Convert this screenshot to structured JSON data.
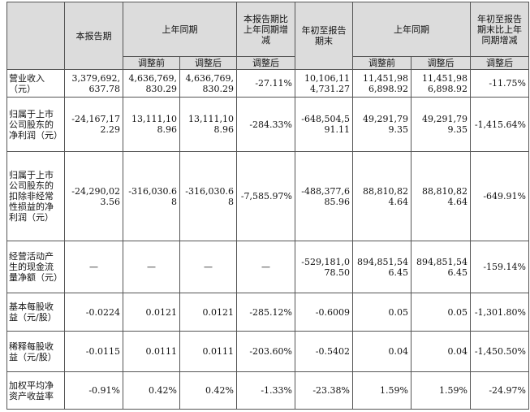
{
  "headers": {
    "current_period": "本报告期",
    "prior_period_group": "上年同期",
    "current_change": "本报告期比上年同期增减",
    "ytd_end": "年初至报告期末",
    "prior_ytd_group": "上年同期",
    "ytd_change": "年初至报告期末比上年同期增减",
    "before_adjust": "调整前",
    "after_adjust": "调整后",
    "after_adjust_change": "调整后",
    "before_adjust_2": "调整前",
    "after_adjust_2": "调整后",
    "after_adjust_change_2": "调整后"
  },
  "rows": [
    {
      "label": "营业收入（元）",
      "current": "3,379,692,637.78",
      "prior_before": "4,636,769,830.29",
      "prior_after": "4,636,769,830.29",
      "change": "-27.11%",
      "ytd": "10,106,114,731.27",
      "prior_ytd_before": "11,451,986,898.92",
      "prior_ytd_after": "11,451,986,898.92",
      "ytd_change": "-11.75%"
    },
    {
      "label": "归属于上市公司股东的净利润（元）",
      "current": "-24,167,172.29",
      "prior_before": "13,111,108.96",
      "prior_after": "13,111,108.96",
      "change": "-284.33%",
      "ytd": "-648,504,591.11",
      "prior_ytd_before": "49,291,799.35",
      "prior_ytd_after": "49,291,799.35",
      "ytd_change": "-1,415.64%"
    },
    {
      "label": "归属于上市公司股东的扣除非经常性损益的净利润（元）",
      "current": "-24,290,023.56",
      "prior_before": "-316,030.68",
      "prior_after": "-316,030.68",
      "change": "-7,585.97%",
      "ytd": "-488,377,685.96",
      "prior_ytd_before": "88,810,824.64",
      "prior_ytd_after": "88,810,824.64",
      "ytd_change": "-649.91%"
    },
    {
      "label": "经营活动产生的现金流量净额（元）",
      "current": "—",
      "prior_before": "—",
      "prior_after": "—",
      "change": "—",
      "ytd": "-529,181,078.50",
      "prior_ytd_before": "894,851,546.45",
      "prior_ytd_after": "894,851,546.45",
      "ytd_change": "-159.14%"
    },
    {
      "label": "基本每股收益（元/股）",
      "current": "-0.0224",
      "prior_before": "0.0121",
      "prior_after": "0.0121",
      "change": "-285.12%",
      "ytd": "-0.6009",
      "prior_ytd_before": "0.05",
      "prior_ytd_after": "0.05",
      "ytd_change": "-1,301.80%"
    },
    {
      "label": "稀释每股收益（元/股）",
      "current": "-0.0115",
      "prior_before": "0.0111",
      "prior_after": "0.0111",
      "change": "-203.60%",
      "ytd": "-0.5402",
      "prior_ytd_before": "0.04",
      "prior_ytd_after": "0.04",
      "ytd_change": "-1,450.50%"
    },
    {
      "label": "加权平均净资产收益率",
      "current": "-0.91%",
      "prior_before": "0.42%",
      "prior_after": "0.42%",
      "change": "-1.33%",
      "ytd": "-23.38%",
      "prior_ytd_before": "1.59%",
      "prior_ytd_after": "1.59%",
      "ytd_change": "-24.97%"
    }
  ]
}
